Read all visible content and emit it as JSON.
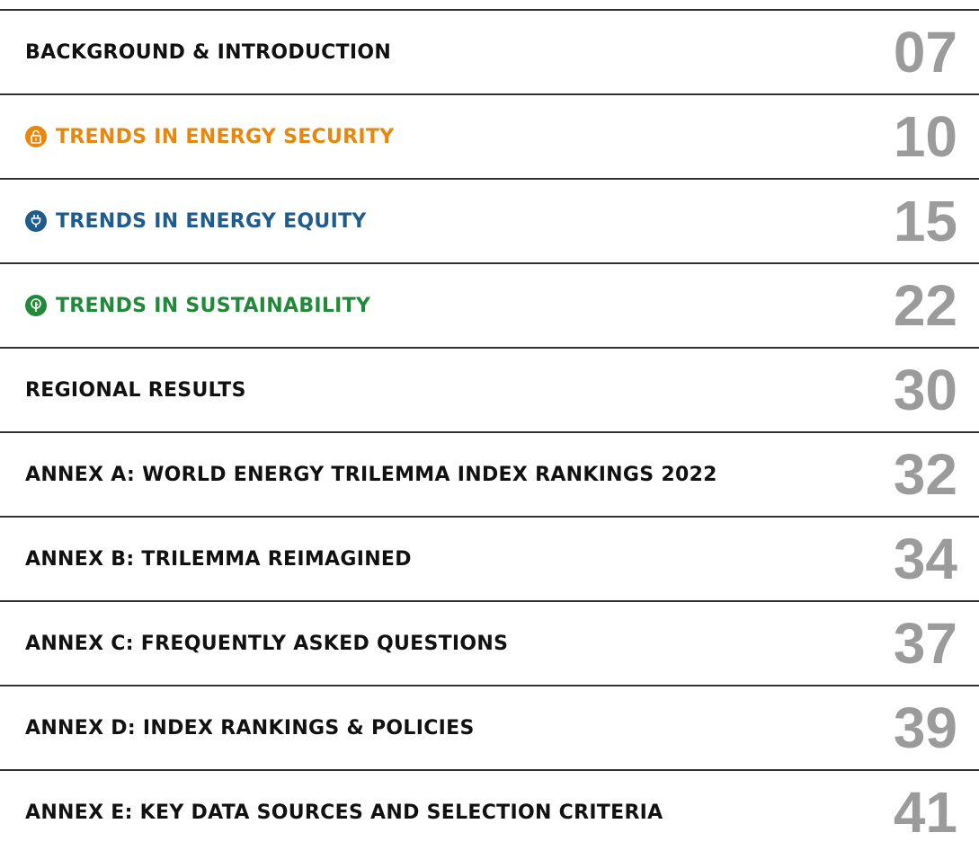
{
  "toc": {
    "entries": [
      {
        "title": "BACKGROUND & INTRODUCTION",
        "page": "07"
      },
      {
        "title": "TRENDS IN ENERGY SECURITY",
        "page": "10"
      },
      {
        "title": "TRENDS IN ENERGY EQUITY",
        "page": "15"
      },
      {
        "title": "TRENDS IN SUSTAINABILITY",
        "page": "22"
      },
      {
        "title": "REGIONAL RESULTS",
        "page": "30"
      },
      {
        "title": "ANNEX A: WORLD ENERGY TRILEMMA INDEX RANKINGS 2022",
        "page": "32"
      },
      {
        "title": "ANNEX B: TRILEMMA REIMAGINED",
        "page": "34"
      },
      {
        "title": "ANNEX C: FREQUENTLY ASKED QUESTIONS",
        "page": "37"
      },
      {
        "title": "ANNEX D: INDEX RANKINGS & POLICIES",
        "page": "39"
      },
      {
        "title": "ANNEX E: KEY DATA SOURCES AND SELECTION CRITERIA",
        "page": "41"
      }
    ]
  }
}
